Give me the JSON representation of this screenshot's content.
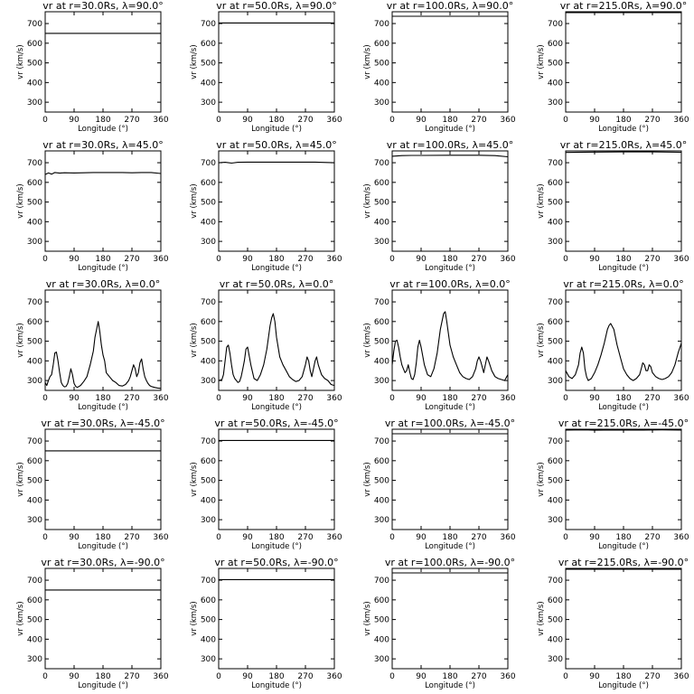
{
  "chart_data": {
    "type": "line",
    "layout": "5 rows x 4 columns",
    "x_axis": {
      "label": "Longitude (°)",
      "range": [
        0,
        360
      ],
      "ticks": [
        0,
        90,
        180,
        270,
        360
      ]
    },
    "y_axis": {
      "label": "vr (km/s)",
      "range": [
        250,
        760
      ],
      "ticks": [
        300,
        400,
        500,
        600,
        700
      ]
    },
    "panels": [
      {
        "title": "vr at r=30.0Rs, λ=90.0°",
        "x": [
          0,
          360
        ],
        "y": [
          650,
          650
        ]
      },
      {
        "title": "vr at r=50.0Rs, λ=90.0°",
        "x": [
          0,
          360
        ],
        "y": [
          703,
          703
        ]
      },
      {
        "title": "vr at r=100.0Rs, λ=90.0°",
        "x": [
          0,
          360
        ],
        "y": [
          737,
          737
        ]
      },
      {
        "title": "vr at r=215.0Rs, λ=90.0°",
        "x": [
          0,
          360
        ],
        "y": [
          756,
          756
        ]
      },
      {
        "title": "vr at r=30.0Rs, λ=45.0°",
        "x": [
          0,
          10,
          20,
          30,
          45,
          60,
          90,
          120,
          150,
          180,
          210,
          240,
          270,
          300,
          330,
          360
        ],
        "y": [
          640,
          648,
          642,
          650,
          647,
          649,
          648,
          649,
          650,
          650,
          650,
          650,
          649,
          650,
          650,
          645
        ]
      },
      {
        "title": "vr at r=50.0Rs, λ=45.0°",
        "x": [
          0,
          20,
          40,
          60,
          90,
          120,
          180,
          240,
          300,
          360
        ],
        "y": [
          700,
          702,
          698,
          702,
          703,
          703,
          703,
          703,
          703,
          700
        ]
      },
      {
        "title": "vr at r=100.0Rs, λ=45.0°",
        "x": [
          0,
          30,
          60,
          90,
          180,
          270,
          320,
          360
        ],
        "y": [
          733,
          736,
          737,
          737,
          738,
          738,
          736,
          730
        ]
      },
      {
        "title": "vr at r=215.0Rs, λ=45.0°",
        "x": [
          0,
          90,
          180,
          270,
          360
        ],
        "y": [
          752,
          754,
          755,
          755,
          753
        ]
      },
      {
        "title": "vr at r=30.0Rs, λ=0.0°",
        "x": [
          0,
          5,
          10,
          15,
          20,
          25,
          30,
          35,
          40,
          45,
          50,
          55,
          60,
          65,
          70,
          75,
          80,
          85,
          90,
          95,
          100,
          110,
          120,
          130,
          140,
          150,
          155,
          160,
          165,
          170,
          175,
          180,
          185,
          190,
          195,
          200,
          210,
          220,
          230,
          240,
          250,
          260,
          265,
          270,
          275,
          280,
          285,
          290,
          295,
          300,
          305,
          310,
          315,
          320,
          325,
          330,
          340,
          350,
          360
        ],
        "y": [
          290,
          275,
          300,
          320,
          330,
          380,
          440,
          445,
          400,
          340,
          290,
          275,
          268,
          270,
          285,
          320,
          360,
          330,
          285,
          270,
          265,
          275,
          295,
          320,
          380,
          450,
          520,
          560,
          600,
          550,
          480,
          430,
          400,
          340,
          330,
          320,
          300,
          290,
          275,
          272,
          280,
          300,
          320,
          350,
          380,
          360,
          320,
          340,
          390,
          410,
          360,
          320,
          300,
          285,
          275,
          270,
          265,
          262,
          260
        ]
      },
      {
        "title": "vr at r=50.0Rs, λ=0.0°",
        "x": [
          0,
          10,
          15,
          20,
          25,
          30,
          35,
          40,
          45,
          50,
          55,
          60,
          65,
          70,
          75,
          80,
          85,
          90,
          100,
          110,
          120,
          130,
          140,
          150,
          160,
          165,
          170,
          175,
          180,
          190,
          200,
          210,
          220,
          230,
          240,
          250,
          260,
          265,
          270,
          275,
          280,
          285,
          290,
          295,
          300,
          305,
          310,
          320,
          330,
          340,
          350,
          360
        ],
        "y": [
          300,
          305,
          330,
          400,
          470,
          480,
          440,
          380,
          330,
          310,
          300,
          290,
          295,
          320,
          360,
          400,
          460,
          470,
          380,
          310,
          300,
          330,
          380,
          460,
          580,
          620,
          640,
          600,
          520,
          420,
          380,
          350,
          320,
          305,
          295,
          300,
          320,
          350,
          380,
          420,
          400,
          350,
          320,
          360,
          400,
          420,
          380,
          330,
          310,
          300,
          280,
          275
        ]
      },
      {
        "title": "vr at r=100.0Rs, λ=0.0°",
        "x": [
          0,
          5,
          10,
          15,
          20,
          25,
          30,
          35,
          40,
          45,
          50,
          55,
          60,
          65,
          70,
          75,
          80,
          85,
          90,
          100,
          110,
          120,
          130,
          140,
          150,
          160,
          165,
          170,
          175,
          180,
          190,
          200,
          210,
          220,
          230,
          240,
          250,
          260,
          265,
          270,
          275,
          280,
          285,
          290,
          295,
          300,
          310,
          320,
          330,
          340,
          350,
          360
        ],
        "y": [
          380,
          450,
          500,
          505,
          470,
          420,
          380,
          360,
          340,
          350,
          380,
          340,
          310,
          305,
          330,
          390,
          470,
          505,
          470,
          380,
          330,
          320,
          360,
          440,
          560,
          640,
          650,
          600,
          540,
          480,
          420,
          380,
          340,
          320,
          310,
          305,
          320,
          360,
          400,
          420,
          400,
          370,
          340,
          380,
          420,
          400,
          350,
          320,
          310,
          305,
          300,
          330
        ]
      },
      {
        "title": "vr at r=215.0Rs, λ=0.0°",
        "x": [
          0,
          10,
          20,
          30,
          40,
          45,
          50,
          55,
          60,
          65,
          70,
          80,
          90,
          100,
          110,
          120,
          130,
          135,
          140,
          150,
          160,
          170,
          180,
          190,
          200,
          210,
          220,
          230,
          235,
          240,
          245,
          250,
          255,
          260,
          265,
          270,
          280,
          290,
          300,
          310,
          320,
          330,
          340,
          350,
          360
        ],
        "y": [
          350,
          320,
          310,
          330,
          380,
          440,
          470,
          440,
          360,
          320,
          300,
          310,
          340,
          380,
          430,
          490,
          560,
          580,
          590,
          560,
          480,
          420,
          360,
          330,
          310,
          300,
          310,
          330,
          360,
          390,
          380,
          350,
          350,
          380,
          370,
          340,
          320,
          310,
          305,
          310,
          320,
          340,
          380,
          440,
          490
        ]
      },
      {
        "title": "vr at r=30.0Rs, λ=-45.0°",
        "x": [
          0,
          360
        ],
        "y": [
          650,
          650
        ]
      },
      {
        "title": "vr at r=50.0Rs, λ=-45.0°",
        "x": [
          0,
          360
        ],
        "y": [
          703,
          703
        ]
      },
      {
        "title": "vr at r=100.0Rs, λ=-45.0°",
        "x": [
          0,
          360
        ],
        "y": [
          737,
          737
        ]
      },
      {
        "title": "vr at r=215.0Rs, λ=-45.0°",
        "x": [
          0,
          60,
          90,
          120,
          180,
          240,
          300,
          360
        ],
        "y": [
          756,
          757,
          755,
          756,
          756,
          756,
          757,
          756
        ]
      },
      {
        "title": "vr at r=30.0Rs, λ=-90.0°",
        "x": [
          0,
          360
        ],
        "y": [
          650,
          650
        ]
      },
      {
        "title": "vr at r=50.0Rs, λ=-90.0°",
        "x": [
          0,
          360
        ],
        "y": [
          703,
          703
        ]
      },
      {
        "title": "vr at r=100.0Rs, λ=-90.0°",
        "x": [
          0,
          360
        ],
        "y": [
          737,
          737
        ]
      },
      {
        "title": "vr at r=215.0Rs, λ=-90.0°",
        "x": [
          0,
          360
        ],
        "y": [
          756,
          756
        ]
      }
    ]
  }
}
